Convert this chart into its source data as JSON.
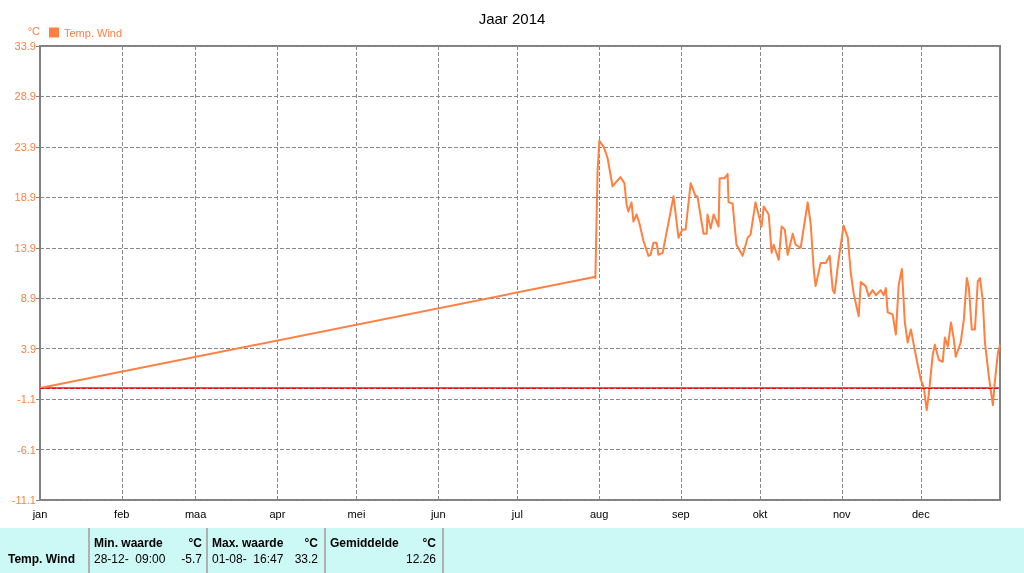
{
  "chart_data": {
    "type": "line",
    "title": "Jaar 2014",
    "ylabel": "°C",
    "xlim": [
      "2014-01-01",
      "2014-12-31"
    ],
    "xticks": [
      {
        "value": "2014-01-01",
        "label": "jan"
      },
      {
        "value": "2014-02-01",
        "label": "feb"
      },
      {
        "value": "2014-03-01",
        "label": "maa"
      },
      {
        "value": "2014-04-01",
        "label": "apr"
      },
      {
        "value": "2014-05-01",
        "label": "mei"
      },
      {
        "value": "2014-06-01",
        "label": "jun"
      },
      {
        "value": "2014-07-01",
        "label": "jul"
      },
      {
        "value": "2014-08-01",
        "label": "aug"
      },
      {
        "value": "2014-09-01",
        "label": "sep"
      },
      {
        "value": "2014-10-01",
        "label": "okt"
      },
      {
        "value": "2014-11-01",
        "label": "nov"
      },
      {
        "value": "2014-12-01",
        "label": "dec"
      }
    ],
    "ylim": [
      -11.1,
      33.9
    ],
    "yticks": [
      -11.1,
      -6.1,
      -1.1,
      3.9,
      8.9,
      13.9,
      18.9,
      23.9,
      28.9,
      33.9
    ],
    "series": [
      {
        "name": "Temp. Wind",
        "color": "#ff8040",
        "x": [
          "2014-01-01",
          "2014-07-30T05:00",
          "2014-07-30T14:00",
          "2014-07-31T00:00",
          "2014-07-31T10:00",
          "2014-08-01T02:00",
          "2014-08-02T17:00",
          "2014-08-04T05:00",
          "2014-08-06T02:00",
          "2014-08-09T02:00",
          "2014-08-10T14:00",
          "2014-08-11T10:00",
          "2014-08-12T02:00",
          "2014-08-13T07:00",
          "2014-08-14T00:00",
          "2014-08-15T05:00",
          "2014-08-16T07:00",
          "2014-08-17T19:00",
          "2014-08-19T17:00",
          "2014-08-20T12:00",
          "2014-08-21T14:00",
          "2014-08-22T19:00",
          "2014-08-23T12:00",
          "2014-08-25T02:00",
          "2014-08-27T00:00",
          "2014-08-29T05:00",
          "2014-08-31T02:00",
          "2014-09-01T14:00",
          "2014-09-02T19:00",
          "2014-09-04T17:00",
          "2014-09-06T14:00",
          "2014-09-07T07:00",
          "2014-09-08T12:00",
          "2014-09-09T14:00",
          "2014-09-10T19:00",
          "2014-09-11T02:00",
          "2014-09-12T07:00",
          "2014-09-13T10:00",
          "2014-09-15T07:00",
          "2014-09-15T17:00",
          "2014-09-17T14:00",
          "2014-09-18T17:00",
          "2014-09-19T02:00",
          "2014-09-20T14:00",
          "2014-09-22T02:00",
          "2014-09-24T10:00",
          "2014-09-26T07:00",
          "2014-09-27T10:00",
          "2014-09-29T07:00",
          "2014-09-30T22:00",
          "2014-10-01T14:00",
          "2014-10-02T10:00",
          "2014-10-04T07:00",
          "2014-10-05T10:00",
          "2014-10-06T05:00",
          "2014-10-08T02:00",
          "2014-10-09T05:00",
          "2014-10-10T10:00",
          "2014-10-11T12:00",
          "2014-10-13T10:00",
          "2014-10-14T12:00",
          "2014-10-16T10:00",
          "2014-10-19T02:00",
          "2014-10-20T05:00",
          "2014-10-21T10:00",
          "2014-10-22T02:00",
          "2014-10-24T00:00",
          "2014-10-25T22:00",
          "2014-10-27T10:00",
          "2014-10-28T14:00",
          "2014-10-29T07:00",
          "2014-10-30T19:00",
          "2014-11-01T17:00",
          "2014-11-03T07:00",
          "2014-11-04T10:00",
          "2014-11-05T12:00",
          "2014-11-07T10:00",
          "2014-11-08T05:00",
          "2014-11-10T02:00",
          "2014-11-11T05:00",
          "2014-11-12T17:00",
          "2014-11-13T22:00",
          "2014-11-15T19:00",
          "2014-11-16T22:00",
          "2014-11-17T17:00",
          "2014-11-18T10:00",
          "2014-11-20T07:00",
          "2014-11-21T12:00",
          "2014-11-22T14:00",
          "2014-11-23T19:00",
          "2014-11-24T22:00",
          "2014-11-26T00:00",
          "2014-11-27T05:00",
          "2014-11-28T07:00",
          "2014-11-29T19:00",
          "2014-12-01T00:00",
          "2014-12-02T02:00",
          "2014-12-03T05:00",
          "2014-12-04T00:00",
          "2014-12-05T12:00",
          "2014-12-06T07:00",
          "2014-12-07T19:00",
          "2014-12-09T07:00",
          "2014-12-10T02:00",
          "2014-12-11T05:00",
          "2014-12-12T10:00",
          "2014-12-13T12:00",
          "2014-12-14T05:00",
          "2014-12-16T02:00",
          "2014-12-17T07:00",
          "2014-12-18T10:00",
          "2014-12-19T05:00",
          "2014-12-20T07:00",
          "2014-12-21T12:00",
          "2014-12-22T14:00",
          "2014-12-23T10:00",
          "2014-12-24T12:00",
          "2014-12-25T07:00",
          "2014-12-26T19:00",
          "2014-12-28T07:00",
          "2014-12-29T00:00",
          "2014-12-30T05:00",
          "2014-12-31T00:00"
        ],
        "values": [
          0.0,
          11.0,
          10.9,
          16.3,
          21.5,
          24.5,
          23.9,
          22.8,
          20.0,
          20.9,
          20.3,
          18.2,
          17.5,
          18.4,
          16.5,
          17.2,
          16.3,
          14.6,
          13.1,
          13.2,
          14.4,
          14.4,
          13.2,
          13.4,
          16.0,
          19.0,
          14.9,
          15.7,
          15.7,
          20.3,
          19.0,
          19.0,
          17.0,
          15.3,
          15.3,
          17.2,
          15.8,
          17.2,
          16.0,
          20.8,
          20.8,
          21.2,
          18.4,
          18.3,
          14.2,
          13.1,
          14.9,
          15.2,
          18.4,
          16.7,
          16.0,
          18.0,
          17.2,
          13.4,
          14.2,
          12.7,
          16.0,
          15.7,
          13.2,
          15.3,
          14.2,
          13.9,
          18.4,
          16.3,
          11.6,
          10.1,
          12.4,
          12.4,
          13.1,
          9.7,
          9.4,
          12.7,
          16.1,
          14.9,
          11.4,
          9.4,
          7.1,
          10.5,
          10.1,
          9.1,
          9.7,
          9.2,
          9.7,
          9.2,
          9.9,
          7.5,
          7.3,
          5.3,
          10.2,
          11.8,
          6.5,
          4.5,
          5.8,
          4.3,
          2.3,
          0.8,
          0.1,
          -2.2,
          -0.6,
          3.3,
          4.3,
          2.8,
          2.6,
          5.0,
          4.1,
          6.5,
          4.8,
          3.1,
          4.5,
          6.8,
          10.9,
          9.9,
          5.8,
          5.8,
          10.6,
          10.9,
          8.6,
          4.5,
          1.1,
          -1.7,
          0.5,
          3.5,
          4.3
        ]
      }
    ],
    "ref_lines": [
      {
        "axis": "y",
        "value": 0,
        "color": "#ff0000",
        "line_style": "dashed"
      }
    ],
    "grid": true,
    "legend": "top left",
    "marker": "none",
    "line_style": "solid",
    "annotations": [
      "Temp. Wind",
      "Min. waarde",
      "°C",
      "28-12-  09:00",
      "-5.7",
      "Max. waarde",
      "°C",
      "01-08-  16:47",
      "33.2",
      "Gemiddelde",
      "°C",
      "12.26"
    ]
  }
}
